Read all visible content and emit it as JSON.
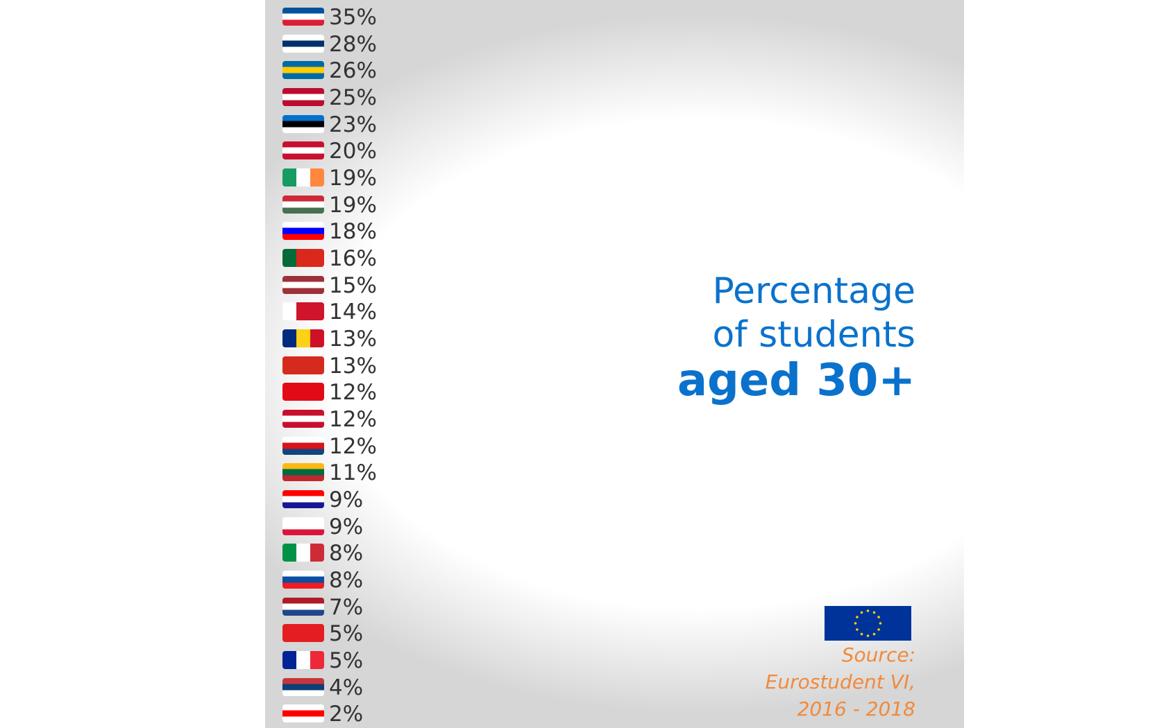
{
  "rows": [
    "35%",
    "28%",
    "26%",
    "25%",
    "23%",
    "20%",
    "19%",
    "19%",
    "18%",
    "16%",
    "15%",
    "14%",
    "13%",
    "13%",
    "12%",
    "12%",
    "12%",
    "11%",
    "9%",
    "9%",
    "8%",
    "8%",
    "7%",
    "5%",
    "5%",
    "4%",
    "2%"
  ],
  "title": {
    "line1": "Percentage",
    "line2": "of students",
    "line3": "aged 30+"
  },
  "source": {
    "label": "Source:",
    "line1": "Eurostudent VI,",
    "line2": "2016 - 2018"
  }
}
